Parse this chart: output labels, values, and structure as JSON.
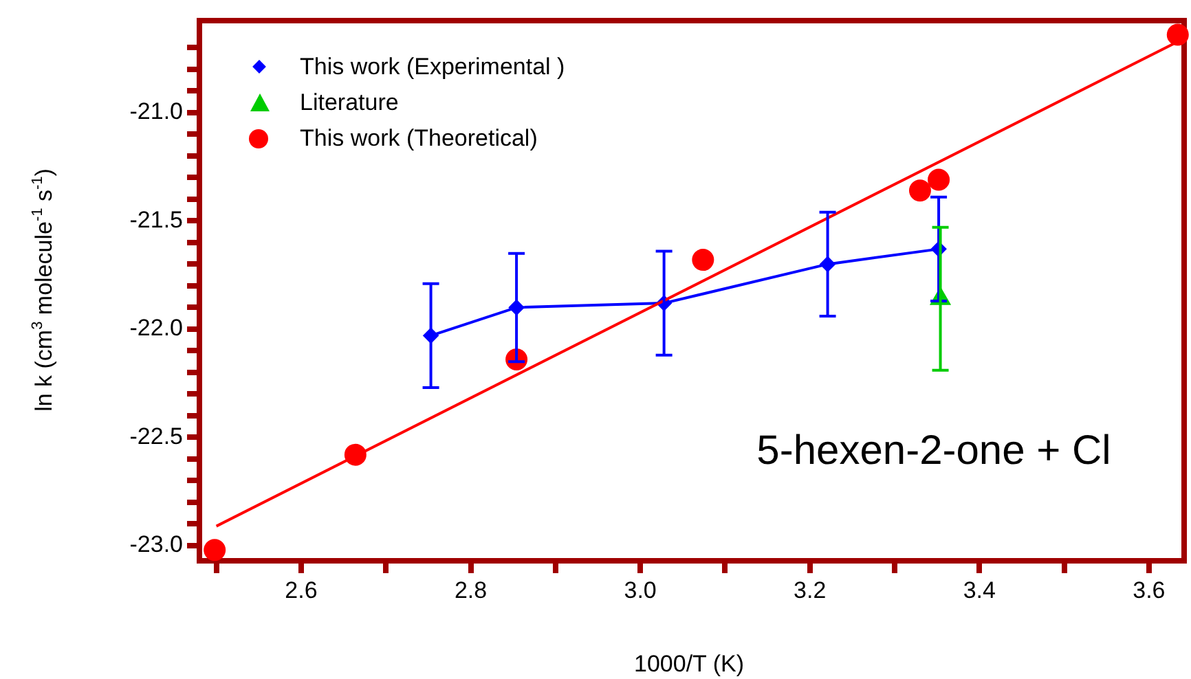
{
  "chart_data": {
    "type": "scatter",
    "xlabel": "1000/T (K)",
    "ylabel": "ln k (cm$^{3}$ molecule$^{-1}$ s$^{-1}$)",
    "annotations": [
      "5-hexen-2-one + Cl"
    ],
    "xlim": [
      2.48,
      3.635
    ],
    "ylim": [
      -23.07,
      -20.575
    ],
    "xticks": [
      {
        "value": 2.5,
        "label": null
      },
      2.6,
      {
        "value": 2.7,
        "label": null
      },
      2.8,
      {
        "value": 2.9,
        "label": null
      },
      {
        "value": 3.0,
        "label": "3.0"
      },
      {
        "value": 3.1,
        "label": null
      },
      3.2,
      {
        "value": 3.3,
        "label": null
      },
      3.4,
      {
        "value": 3.5,
        "label": null
      },
      3.6
    ],
    "yticks": [
      {
        "value": -23.0,
        "label": "-23.0"
      },
      {
        "value": -22.9,
        "label": null
      },
      {
        "value": -22.8,
        "label": null
      },
      {
        "value": -22.7,
        "label": null
      },
      {
        "value": -22.6,
        "label": null
      },
      -22.5,
      {
        "value": -22.4,
        "label": null
      },
      {
        "value": -22.3,
        "label": null
      },
      {
        "value": -22.2,
        "label": null
      },
      {
        "value": -22.1,
        "label": null
      },
      {
        "value": -22.0,
        "label": "-22.0"
      },
      {
        "value": -21.9,
        "label": null
      },
      {
        "value": -21.8,
        "label": null
      },
      {
        "value": -21.7,
        "label": null
      },
      {
        "value": -21.6,
        "label": null
      },
      -21.5,
      {
        "value": -21.4,
        "label": null
      },
      {
        "value": -21.3,
        "label": null
      },
      {
        "value": -21.2,
        "label": null
      },
      {
        "value": -21.1,
        "label": null
      },
      {
        "value": -21.0,
        "label": "-21.0"
      },
      {
        "value": -20.9,
        "label": null
      },
      {
        "value": -20.8,
        "label": null
      },
      {
        "value": -20.7,
        "label": null
      }
    ],
    "grid": false,
    "legend": "top left",
    "series": [
      {
        "name": "This work (Experimental )",
        "type": "line",
        "marker": "diamond",
        "color": "#0000ff",
        "x": [
          2.753,
          2.854,
          3.028,
          3.221,
          3.352
        ],
        "values": [
          -22.03,
          -21.9,
          -21.88,
          -21.7,
          -21.63
        ],
        "errors": [
          0.24,
          0.25,
          0.24,
          0.24,
          0.24
        ]
      },
      {
        "name": "Literature",
        "type": "scatter",
        "marker": "triangle",
        "color": "#00cc00",
        "x": [
          3.354
        ],
        "values": [
          -21.86
        ],
        "errors": [
          0.33
        ]
      },
      {
        "name": "This work (Theoretical)",
        "type": "scatter",
        "marker": "circle",
        "color": "#ff0000",
        "x": [
          2.498,
          2.664,
          2.854,
          3.074,
          3.33,
          3.352,
          3.634
        ],
        "values": [
          -23.02,
          -22.58,
          -22.14,
          -21.68,
          -21.36,
          -21.31,
          -20.64
        ]
      },
      {
        "type": "line",
        "marker": "none",
        "color": "#ff0000",
        "x": [
          2.5,
          3.635
        ],
        "values": [
          -22.91,
          -20.67
        ]
      }
    ]
  }
}
